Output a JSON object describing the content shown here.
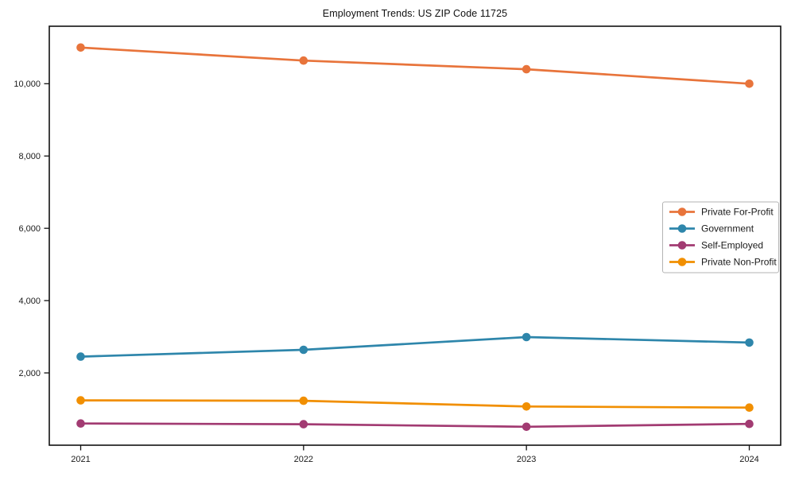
{
  "chart_data": {
    "type": "line",
    "title": "Employment Trends: US ZIP Code 11725",
    "categories": [
      "2021",
      "2022",
      "2023",
      "2024"
    ],
    "x": [
      2021,
      2022,
      2023,
      2024
    ],
    "series": [
      {
        "name": "Private For-Profit",
        "color": "#E8743B",
        "values": [
          11000,
          10640,
          10400,
          10000
        ]
      },
      {
        "name": "Government",
        "color": "#2E86AB",
        "values": [
          2450,
          2640,
          2990,
          2840
        ]
      },
      {
        "name": "Self-Employed",
        "color": "#A23B72",
        "values": [
          600,
          580,
          510,
          590
        ]
      },
      {
        "name": "Private Non-Profit",
        "color": "#F18F01",
        "values": [
          1240,
          1230,
          1070,
          1040
        ]
      }
    ],
    "xlabel": "",
    "ylabel": "",
    "ylim": [
      0,
      11590
    ],
    "yticks": [
      2000,
      4000,
      6000,
      8000,
      10000
    ],
    "ytick_labels": [
      "2,000",
      "4,000",
      "6,000",
      "8,000",
      "10,000"
    ],
    "grid": false,
    "legend_position": "center-right",
    "marker": "circle",
    "axis_color": "#111111",
    "legend_border_color": "#b3b3b3",
    "background_color": "#ffffff"
  }
}
